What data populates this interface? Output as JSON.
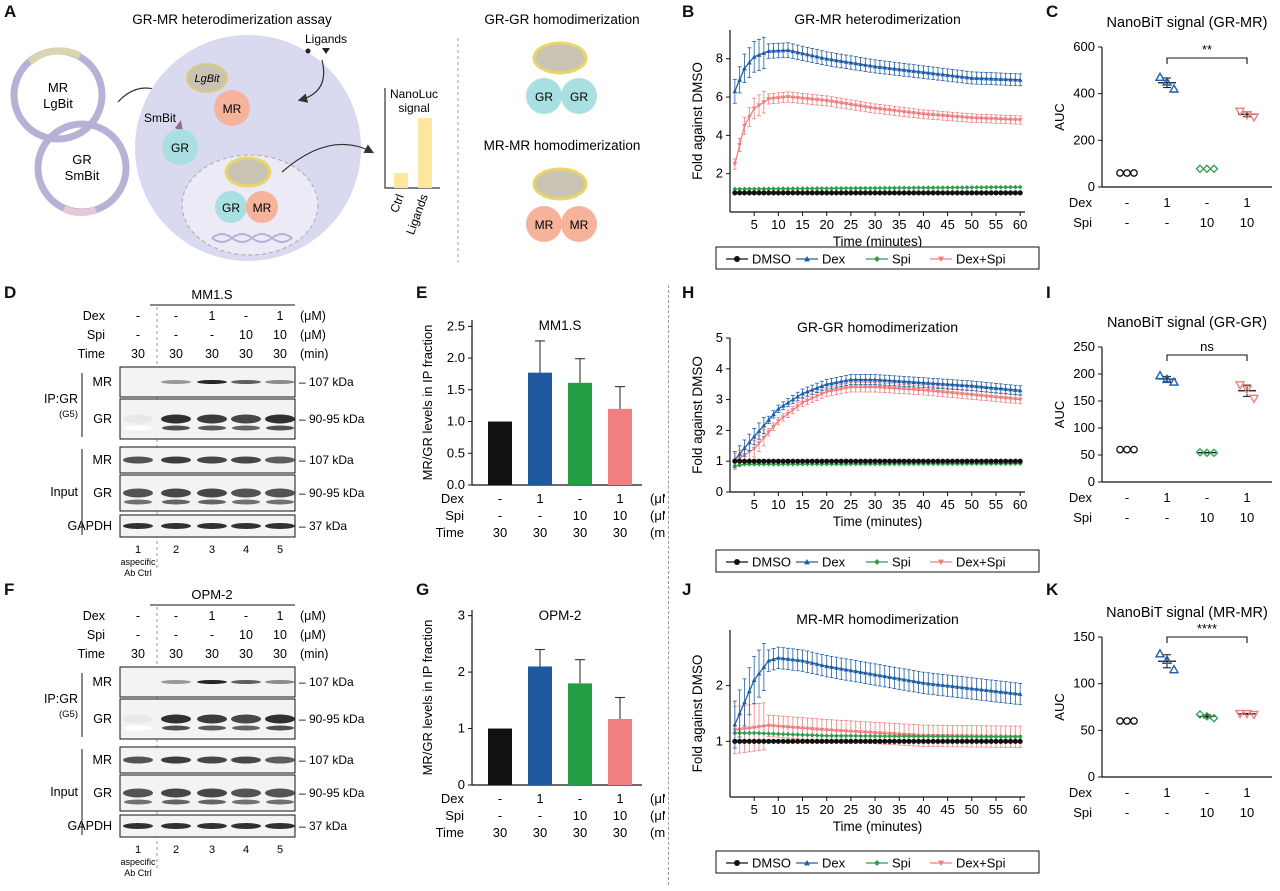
{
  "panels": {
    "A": "A",
    "B": "B",
    "C": "C",
    "D": "D",
    "E": "E",
    "F": "F",
    "G": "G",
    "H": "H",
    "I": "I",
    "J": "J",
    "K": "K"
  },
  "panel_a": {
    "title": "GR-MR heterodimerization assay",
    "plasmid1": [
      "MR",
      "LgBit"
    ],
    "plasmid2": [
      "GR",
      "SmBit"
    ],
    "lgbit": "LgBit",
    "smbit": "SmBit",
    "mr": "MR",
    "gr": "GR",
    "ligands": "Ligands",
    "nanoluc": [
      "NanoLuc",
      "signal"
    ],
    "bar_ctrl": "Ctrl",
    "bar_ligands": "Ligands",
    "grgr_title": "GR-GR homodimerization",
    "mrmr_title": "MR-MR homodimerization"
  },
  "treat": {
    "dex_label": "Dex",
    "spi_label": "Spi",
    "time_label": "Time",
    "um": "(μM)",
    "min": "(min)",
    "dex4": [
      "-",
      "1",
      "-",
      "1"
    ],
    "spi4": [
      "-",
      "-",
      "10",
      "10"
    ],
    "dex5": [
      "-",
      "-",
      "1",
      "-",
      "1"
    ],
    "spi5": [
      "-",
      "-",
      "-",
      "10",
      "10"
    ],
    "time4": [
      "30",
      "30",
      "30",
      "30"
    ],
    "time5": [
      "30",
      "30",
      "30",
      "30",
      "30"
    ]
  },
  "legend": [
    "DMSO",
    "Dex",
    "Spi",
    "Dex+Spi"
  ],
  "colors": {
    "dmso": "#111111",
    "dex": "#1f5fa8",
    "spi": "#2e9e48",
    "dexspi": "#ef7f7f",
    "dex_bar": "#1f5aa0",
    "spi_bar": "#23a046",
    "dexspi_bar": "#f08080"
  },
  "blot": {
    "mm1s": "MM1.S",
    "opm2": "OPM-2",
    "ip_label": "IP:GR",
    "ip_sub": "(G5)",
    "input_label": "Input",
    "row_mr": "MR",
    "row_gr": "GR",
    "row_gapdh": "GAPDH",
    "kda_107": "– 107 kDa",
    "kda_9095": "– 90-95 kDa",
    "kda_37": "– 37 kDa",
    "lanes": [
      "1",
      "2",
      "3",
      "4",
      "5"
    ],
    "aspecific": [
      "aspecific",
      "Ab Ctrl"
    ]
  },
  "chart_data": [
    {
      "panel": "B",
      "type": "line",
      "title": "GR-MR heterodimerization",
      "xlabel": "Time (minutes)",
      "ylabel": "Fold against DMSO",
      "xticks": [
        5,
        10,
        15,
        20,
        25,
        30,
        35,
        40,
        45,
        50,
        55,
        60
      ],
      "yticks": [
        2,
        4,
        6,
        8
      ],
      "ylim": [
        0,
        9.5
      ],
      "series": [
        {
          "name": "DMSO",
          "values": [
            [
              1,
              1
            ],
            [
              60,
              1
            ]
          ]
        },
        {
          "name": "Dex",
          "values": [
            [
              1,
              6.3
            ],
            [
              3,
              7.5
            ],
            [
              5,
              8.1
            ],
            [
              8,
              8.4
            ],
            [
              12,
              8.45
            ],
            [
              20,
              8.0
            ],
            [
              30,
              7.6
            ],
            [
              40,
              7.3
            ],
            [
              50,
              7.0
            ],
            [
              60,
              6.9
            ]
          ]
        },
        {
          "name": "Spi",
          "values": [
            [
              1,
              1.2
            ],
            [
              60,
              1.3
            ]
          ]
        },
        {
          "name": "Dex+Spi",
          "values": [
            [
              1,
              2.5
            ],
            [
              3,
              4.5
            ],
            [
              5,
              5.4
            ],
            [
              8,
              5.9
            ],
            [
              12,
              6.0
            ],
            [
              20,
              5.8
            ],
            [
              30,
              5.4
            ],
            [
              40,
              5.1
            ],
            [
              50,
              4.9
            ],
            [
              60,
              4.8
            ]
          ]
        }
      ]
    },
    {
      "panel": "C",
      "type": "scatter",
      "title": "NanoBiT signal (GR-MR)",
      "ylabel": "AUC",
      "yticks": [
        0,
        200,
        400,
        600
      ],
      "ylim": [
        0,
        600
      ],
      "sig": "**",
      "groups": [
        {
          "name": "DMSO",
          "values": [
            60,
            60,
            60
          ]
        },
        {
          "name": "Dex",
          "values": [
            470,
            450,
            420
          ]
        },
        {
          "name": "Spi",
          "values": [
            78,
            78,
            78
          ]
        },
        {
          "name": "Dex+Spi",
          "values": [
            325,
            310,
            300
          ]
        }
      ]
    },
    {
      "panel": "E",
      "type": "bar",
      "title": "MM1.S",
      "ylabel": "MR/GR levels in IP fraction",
      "yticks": [
        0.0,
        0.5,
        1.0,
        1.5,
        2.0,
        2.5
      ],
      "ylim": [
        0,
        2.6
      ],
      "values": [
        1.0,
        1.77,
        1.61,
        1.2
      ],
      "errors": [
        0,
        0.5,
        0.38,
        0.35
      ]
    },
    {
      "panel": "G",
      "type": "bar",
      "title": "OPM-2",
      "ylabel": "MR/GR levels in IP fraction",
      "yticks": [
        0,
        1,
        2,
        3
      ],
      "ylim": [
        0,
        3.1
      ],
      "values": [
        1.0,
        2.1,
        1.8,
        1.17
      ],
      "errors": [
        0,
        0.3,
        0.42,
        0.38
      ]
    },
    {
      "panel": "H",
      "type": "line",
      "title": "GR-GR homodimerization",
      "xlabel": "Time (minutes)",
      "ylabel": "Fold against DMSO",
      "xticks": [
        5,
        10,
        15,
        20,
        25,
        30,
        35,
        40,
        45,
        50,
        55,
        60
      ],
      "yticks": [
        0,
        1,
        2,
        3,
        4,
        5
      ],
      "ylim": [
        0,
        5
      ],
      "series": [
        {
          "name": "DMSO",
          "values": [
            [
              1,
              1
            ],
            [
              60,
              1
            ]
          ]
        },
        {
          "name": "Dex",
          "values": [
            [
              1,
              1.05
            ],
            [
              5,
              1.8
            ],
            [
              10,
              2.7
            ],
            [
              15,
              3.2
            ],
            [
              20,
              3.5
            ],
            [
              25,
              3.65
            ],
            [
              30,
              3.65
            ],
            [
              40,
              3.55
            ],
            [
              50,
              3.45
            ],
            [
              60,
              3.3
            ]
          ]
        },
        {
          "name": "Spi",
          "values": [
            [
              1,
              0.85
            ],
            [
              3,
              0.9
            ],
            [
              60,
              0.92
            ]
          ]
        },
        {
          "name": "Dex+Spi",
          "values": [
            [
              1,
              1.0
            ],
            [
              5,
              1.4
            ],
            [
              10,
              2.3
            ],
            [
              15,
              2.9
            ],
            [
              20,
              3.25
            ],
            [
              25,
              3.4
            ],
            [
              30,
              3.4
            ],
            [
              40,
              3.3
            ],
            [
              50,
              3.15
            ],
            [
              60,
              3.0
            ]
          ]
        }
      ]
    },
    {
      "panel": "I",
      "type": "scatter",
      "title": "NanoBiT signal (GR-GR)",
      "ylabel": "AUC",
      "yticks": [
        0,
        50,
        100,
        150,
        200,
        250
      ],
      "ylim": [
        0,
        250
      ],
      "sig": "ns",
      "groups": [
        {
          "name": "DMSO",
          "values": [
            60,
            60,
            60
          ]
        },
        {
          "name": "Dex",
          "values": [
            197,
            190,
            185
          ]
        },
        {
          "name": "Spi",
          "values": [
            55,
            54,
            54
          ]
        },
        {
          "name": "Dex+Spi",
          "values": [
            180,
            172,
            155
          ]
        }
      ]
    },
    {
      "panel": "J",
      "type": "line",
      "title": "MR-MR homodimerization",
      "xlabel": "Time (minutes)",
      "ylabel": "Fold against DMSO",
      "xticks": [
        5,
        10,
        15,
        20,
        25,
        30,
        35,
        40,
        45,
        50,
        55,
        60
      ],
      "yticks": [
        1,
        2
      ],
      "ylim": [
        0,
        3
      ],
      "series": [
        {
          "name": "DMSO",
          "values": [
            [
              1,
              1
            ],
            [
              60,
              1
            ]
          ]
        },
        {
          "name": "Dex",
          "values": [
            [
              1,
              1.3
            ],
            [
              3,
              1.7
            ],
            [
              5,
              2.1
            ],
            [
              8,
              2.45
            ],
            [
              10,
              2.5
            ],
            [
              15,
              2.45
            ],
            [
              20,
              2.35
            ],
            [
              30,
              2.2
            ],
            [
              40,
              2.05
            ],
            [
              50,
              1.95
            ],
            [
              60,
              1.85
            ]
          ]
        },
        {
          "name": "Spi",
          "values": [
            [
              1,
              1.15
            ],
            [
              5,
              1.15
            ],
            [
              20,
              1.1
            ],
            [
              60,
              1.08
            ]
          ]
        },
        {
          "name": "Dex+Spi",
          "values": [
            [
              1,
              1.2
            ],
            [
              8,
              1.28
            ],
            [
              20,
              1.2
            ],
            [
              40,
              1.1
            ],
            [
              60,
              1.08
            ]
          ]
        }
      ]
    },
    {
      "panel": "K",
      "type": "scatter",
      "title": "NanoBiT signal (MR-MR)",
      "ylabel": "AUC",
      "yticks": [
        0,
        50,
        100,
        150
      ],
      "ylim": [
        0,
        150
      ],
      "sig": "****",
      "groups": [
        {
          "name": "DMSO",
          "values": [
            60,
            60,
            60
          ]
        },
        {
          "name": "Dex",
          "values": [
            132,
            125,
            115
          ]
        },
        {
          "name": "Spi",
          "values": [
            67,
            65,
            63
          ]
        },
        {
          "name": "Dex+Spi",
          "values": [
            68,
            68,
            67
          ]
        }
      ]
    }
  ]
}
